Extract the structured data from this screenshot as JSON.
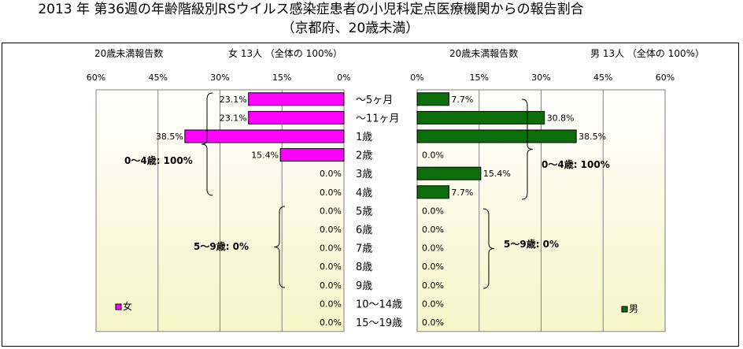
{
  "title": "2013 年 第36週の年齢階級別RSウイルス感染症患者の小児科定点医療機関からの報告割合",
  "subtitle": "（京都府、20歳未満）",
  "chart_data": [
    {
      "type": "bar",
      "orientation": "horizontal",
      "direction": "right-to-left",
      "header_left": "20歳未満報告数",
      "header_right": "女 13人 （全体の 100%）",
      "axis_ticks": [
        "60%",
        "45%",
        "30%",
        "15%",
        "0%"
      ],
      "xlim": [
        0,
        60
      ],
      "grid": true,
      "legend": "女",
      "legend_position": "bottom-left",
      "bar_color": "#ff00ff",
      "categories": [
        "～5ヶ月",
        "～11ヶ月",
        "1歳",
        "2歳",
        "3歳",
        "4歳",
        "5歳",
        "6歳",
        "7歳",
        "8歳",
        "9歳",
        "10～14歳",
        "15～19歳"
      ],
      "values": [
        23.1,
        23.1,
        38.5,
        15.4,
        0,
        0,
        0,
        0,
        0,
        0,
        0,
        0,
        0
      ],
      "value_labels": [
        "23.1%",
        "23.1%",
        "38.5%",
        "15.4%",
        "0.0%",
        "0.0%",
        "0.0%",
        "0.0%",
        "0.0%",
        "0.0%",
        "0.0%",
        "0.0%",
        "0.0%"
      ],
      "group_labels": [
        "0～4歳: 100%",
        "5～9歳: 0%"
      ]
    },
    {
      "type": "bar",
      "orientation": "horizontal",
      "direction": "left-to-right",
      "header_left": "20歳未満報告数",
      "header_right": "男 13人 （全体の 100%）",
      "axis_ticks": [
        "0%",
        "15%",
        "30%",
        "45%",
        "60%"
      ],
      "xlim": [
        0,
        60
      ],
      "grid": true,
      "legend": "男",
      "legend_position": "bottom-right",
      "bar_color": "#0b6e0b",
      "categories": [
        "～5ヶ月",
        "～11ヶ月",
        "1歳",
        "2歳",
        "3歳",
        "4歳",
        "5歳",
        "6歳",
        "7歳",
        "8歳",
        "9歳",
        "10～14歳",
        "15～19歳"
      ],
      "values": [
        7.7,
        30.8,
        38.5,
        0,
        15.4,
        7.7,
        0,
        0,
        0,
        0,
        0,
        0,
        0
      ],
      "value_labels": [
        "7.7%",
        "30.8%",
        "38.5%",
        "0.0%",
        "15.4%",
        "7.7%",
        "0.0%",
        "0.0%",
        "0.0%",
        "0.0%",
        "0.0%",
        "0.0%",
        "0.0%"
      ],
      "group_labels": [
        "0～4歳: 100%",
        "5～9歳: 0%"
      ]
    }
  ]
}
